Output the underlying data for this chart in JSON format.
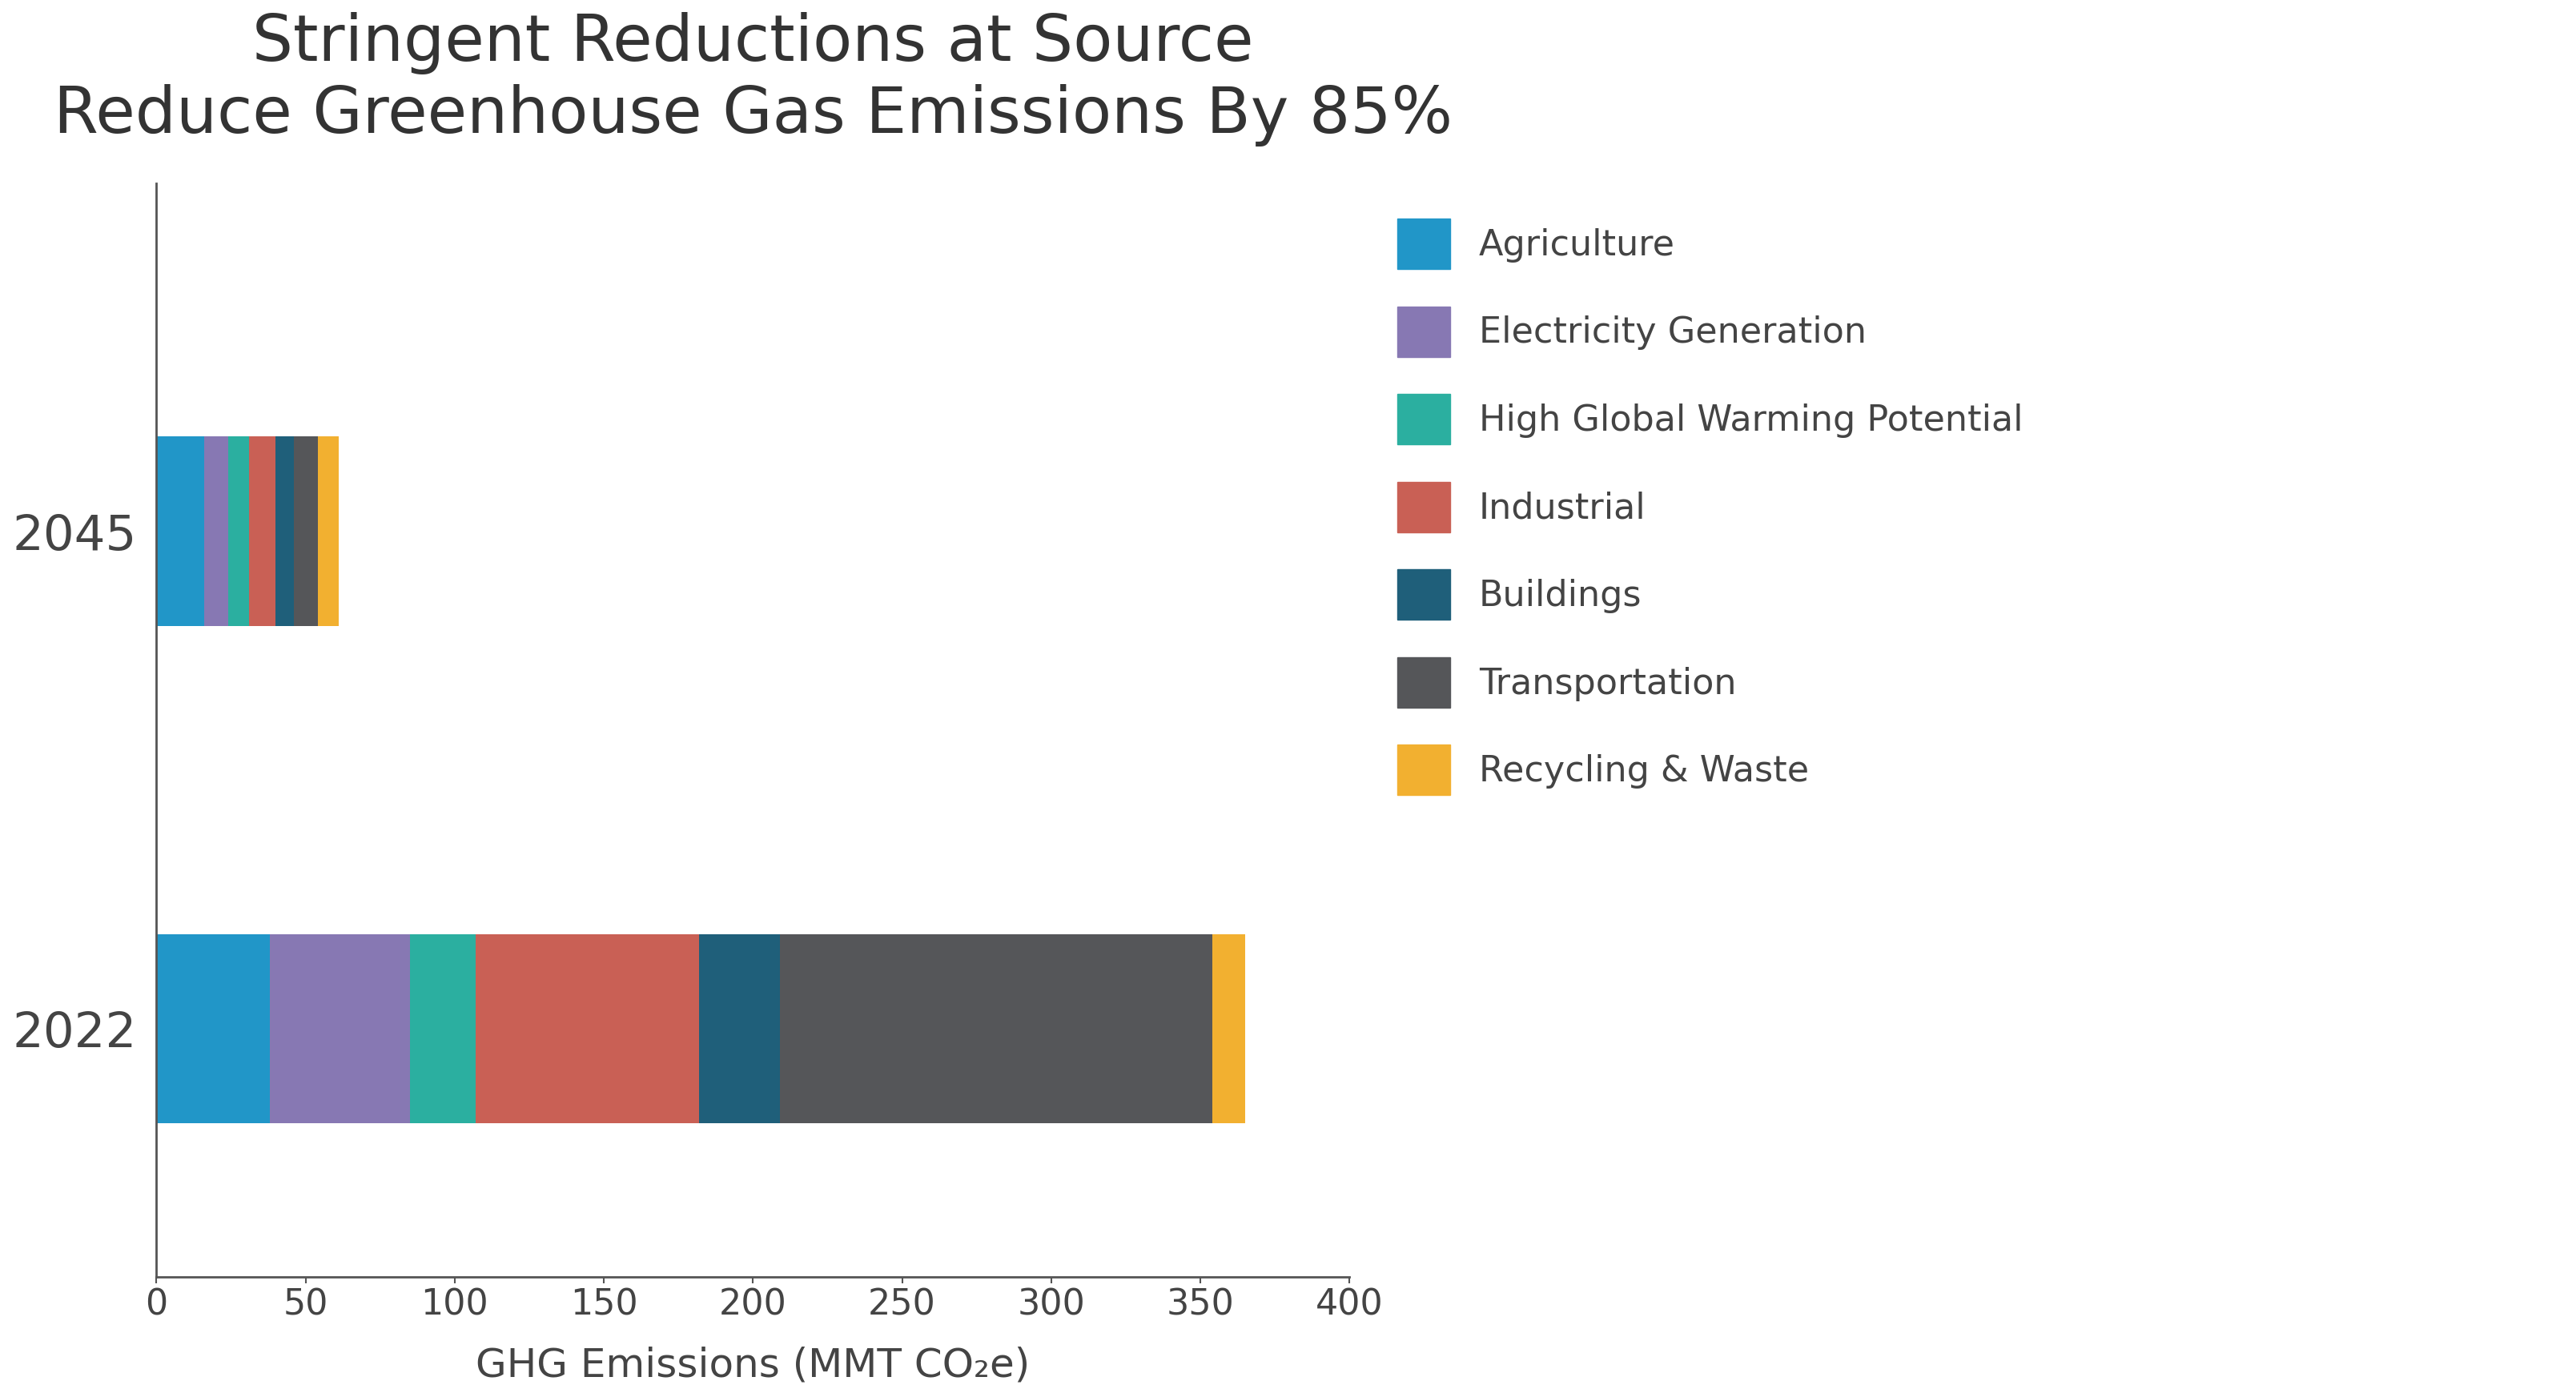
{
  "title_line1": "Stringent Reductions at Source",
  "title_line2": "Reduce Greenhouse Gas Emissions By 85%",
  "xlabel": "GHG Emissions (MMT CO₂e)",
  "years": [
    "2022",
    "2045"
  ],
  "categories": [
    "Agriculture",
    "Electricity Generation",
    "High Global Warming Potential",
    "Industrial",
    "Buildings",
    "Transportation",
    "Recycling & Waste"
  ],
  "colors": [
    "#2196C8",
    "#8778B3",
    "#2BAFA0",
    "#C96055",
    "#1F5F7A",
    "#555659",
    "#F2B030"
  ],
  "values_2022": [
    38,
    47,
    22,
    75,
    27,
    145,
    11
  ],
  "values_2045": [
    16,
    8,
    7,
    9,
    6,
    8,
    7
  ],
  "xlim": [
    0,
    400
  ],
  "xticks": [
    0,
    50,
    100,
    150,
    200,
    250,
    300,
    350,
    400
  ],
  "background_color": "#FFFFFF",
  "title_fontsize": 58,
  "label_fontsize": 36,
  "tick_fontsize": 32,
  "legend_fontsize": 32,
  "ytick_fontsize": 44
}
